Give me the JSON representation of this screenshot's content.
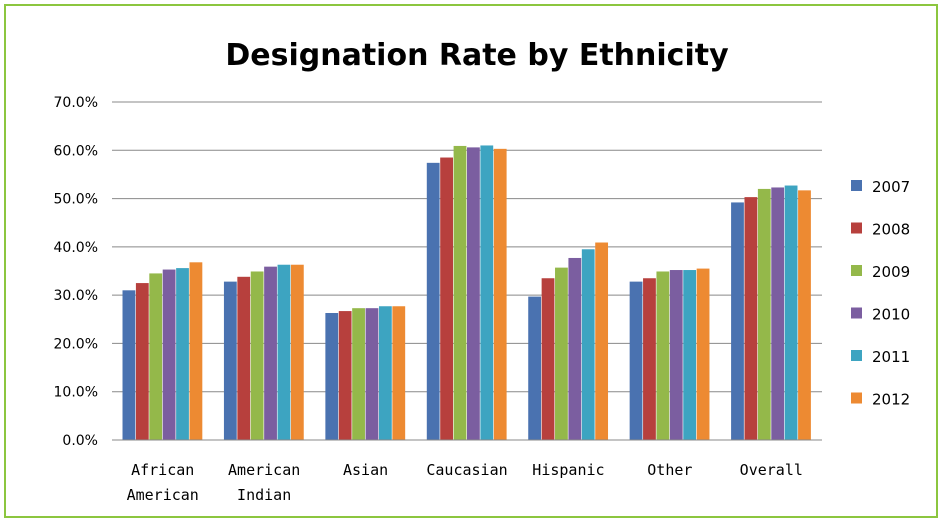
{
  "chart_data": {
    "type": "bar",
    "title": "Designation Rate by Ethnicity",
    "xlabel": "",
    "ylabel": "",
    "ylim": [
      0,
      70
    ],
    "yticks": [
      "0.0%",
      "10.0%",
      "20.0%",
      "30.0%",
      "40.0%",
      "50.0%",
      "60.0%",
      "70.0%"
    ],
    "grid": true,
    "legend_position": "right",
    "categories": [
      [
        "African",
        "American"
      ],
      [
        "American",
        "Indian"
      ],
      [
        "Asian"
      ],
      [
        "Caucasian"
      ],
      [
        "Hispanic"
      ],
      [
        "Other"
      ],
      [
        "Overall"
      ]
    ],
    "series": [
      {
        "name": "2007",
        "color": "#4a72b0",
        "values": [
          31.0,
          32.8,
          26.3,
          57.4,
          29.7,
          32.8,
          49.2
        ]
      },
      {
        "name": "2008",
        "color": "#b7403d",
        "values": [
          32.5,
          33.8,
          26.7,
          58.5,
          33.5,
          33.5,
          50.3
        ]
      },
      {
        "name": "2009",
        "color": "#94b84a",
        "values": [
          34.5,
          34.9,
          27.3,
          60.9,
          35.7,
          34.9,
          52.0
        ]
      },
      {
        "name": "2010",
        "color": "#7b5ea0",
        "values": [
          35.3,
          35.9,
          27.3,
          60.6,
          37.7,
          35.2,
          52.3
        ]
      },
      {
        "name": "2011",
        "color": "#3da4c1",
        "values": [
          35.6,
          36.3,
          27.7,
          61.0,
          39.5,
          35.2,
          52.7
        ]
      },
      {
        "name": "2012",
        "color": "#ed8a32",
        "values": [
          36.8,
          36.3,
          27.7,
          60.3,
          40.9,
          35.5,
          51.7
        ]
      }
    ],
    "colors": {
      "frame_border": "#8cc63f",
      "gridline": "#898989",
      "axis": "#898989"
    }
  }
}
